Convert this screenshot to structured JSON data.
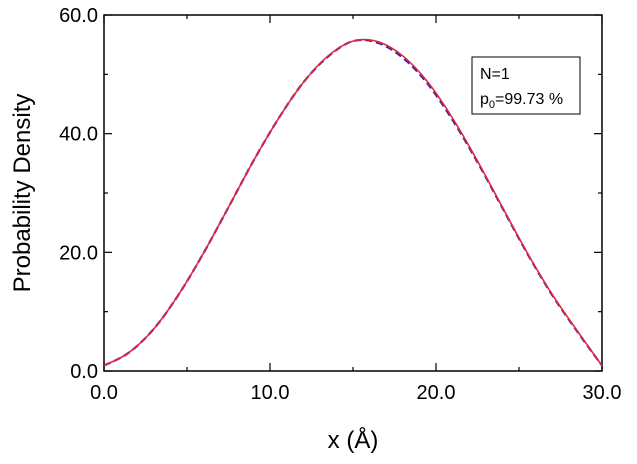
{
  "chart_data": {
    "type": "line",
    "xlabel": "x (Å)",
    "ylabel": "Probability Density",
    "xlim": [
      0,
      30
    ],
    "ylim": [
      0,
      60
    ],
    "x_ticks": [
      "0.0",
      "10.0",
      "20.0",
      "30.0"
    ],
    "y_ticks": [
      "0.0",
      "20.0",
      "40.0",
      "60.0"
    ],
    "grid": false,
    "legend_placement": "top-right",
    "annotation": {
      "line1": "N=1",
      "line2_prefix": "p",
      "line2_subscript": "0",
      "line2_suffix": "=99.73 %"
    },
    "series": [
      {
        "style": "dashed",
        "color": "#2a2aa8",
        "x": [
          0,
          1.5,
          3,
          4.5,
          6,
          7.5,
          9,
          10.5,
          12,
          13.5,
          15,
          16.5,
          18,
          19.5,
          21,
          22.5,
          24,
          25.5,
          27,
          28.5,
          30
        ],
        "y": [
          0.9,
          3.1,
          7.1,
          12.9,
          19.9,
          27.6,
          35.4,
          42.5,
          48.6,
          53.0,
          55.6,
          55.3,
          52.8,
          48.4,
          42.3,
          35.2,
          27.5,
          19.8,
          12.8,
          6.7,
          0.9
        ]
      },
      {
        "style": "solid",
        "color": "#e8243c",
        "x": [
          0,
          1.5,
          3,
          4.5,
          6,
          7.5,
          9,
          10.5,
          12,
          13.5,
          15,
          16.5,
          18,
          19.5,
          21,
          22.5,
          24,
          25.5,
          27,
          28.5,
          30
        ],
        "y": [
          0.9,
          3.1,
          7.1,
          12.9,
          19.9,
          27.6,
          35.4,
          42.5,
          48.6,
          53.1,
          55.6,
          55.5,
          53.1,
          48.7,
          42.6,
          35.4,
          27.6,
          19.9,
          12.9,
          6.8,
          0.9
        ]
      }
    ]
  }
}
